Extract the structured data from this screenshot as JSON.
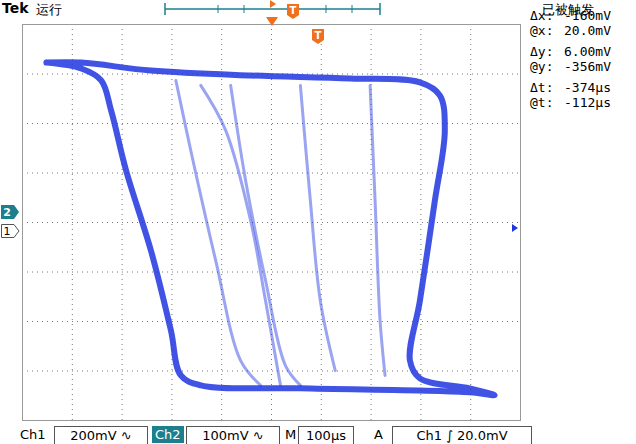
{
  "chart_data": {
    "type": "line",
    "xlim": [
      -1000,
      1000
    ],
    "ylim": [
      -400,
      400
    ],
    "xticks": [
      -1000,
      -800,
      -600,
      -400,
      -200,
      0,
      200,
      400,
      600,
      800,
      1000
    ],
    "yticks": [
      -400,
      -300,
      -200,
      -100,
      0,
      100,
      200,
      300,
      400
    ],
    "grid": true,
    "tick_labels": false,
    "color": "#1f35e0",
    "series": [
      {
        "x": [
          -904,
          -764,
          -484,
          -84,
          316,
          596,
          676,
          696,
          656,
          596,
          556,
          596,
          796,
          896,
          796,
          116,
          -284,
          -364,
          -404,
          -484,
          -584,
          -644,
          -684,
          -764,
          -904
        ],
        "y": [
          323,
          323,
          307,
          297,
          291,
          283,
          257,
          186,
          44,
          -158,
          -279,
          -315,
          -335,
          -349,
          -343,
          -335,
          -329,
          -309,
          -218,
          -57,
          105,
          226,
          287,
          311,
          323
        ]
      },
      {
        "x": [
          -384,
          -324,
          -224,
          -124,
          -44
        ],
        "y": [
          287,
          145,
          -77,
          -279,
          -329
        ]
      },
      {
        "x": [
          -164,
          -104,
          -24,
          56,
          116
        ],
        "y": [
          277,
          85,
          -117,
          -289,
          -329
        ]
      },
      {
        "x": [
          116,
          156,
          196,
          256
        ],
        "y": [
          277,
          44,
          -158,
          -299
        ]
      },
      {
        "x": [
          36,
          -24,
          -84,
          -184,
          -284
        ],
        "y": [
          -329,
          -158,
          4,
          186,
          277
        ]
      },
      {
        "x": [
          396,
          416,
          436,
          456
        ],
        "y": [
          277,
          44,
          -198,
          -309
        ]
      }
    ]
  },
  "header": {
    "brand": "Tek",
    "state": "运行",
    "trigger_status": "已被触发",
    "markers": [
      "T",
      "T"
    ]
  },
  "channel_markers": [
    "2",
    "1"
  ],
  "readouts": [
    [
      "Δx:",
      "-160mV"
    ],
    [
      "@x:",
      "20.0mV"
    ],
    [
      "Δy:",
      "6.00mV"
    ],
    [
      "@y:",
      "-356mV"
    ],
    [
      "Δt:",
      "-374µs"
    ],
    [
      "@t:",
      "-112µs"
    ]
  ],
  "status_bar": {
    "ch1": [
      "Ch1",
      "200mV ∿"
    ],
    "ch2": [
      "Ch2",
      "100mV ∿"
    ],
    "timebase": [
      "M",
      "100µs"
    ],
    "trigger": [
      "A",
      "Ch1 ∫ 20.0mV"
    ]
  }
}
